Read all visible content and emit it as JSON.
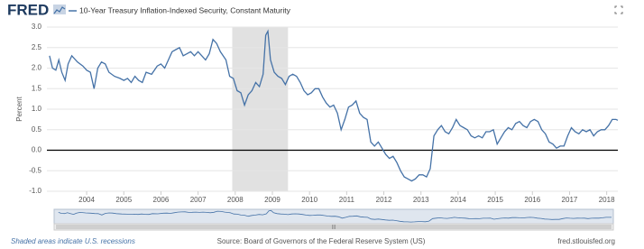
{
  "chart_data": {
    "type": "line",
    "brand": "FRED",
    "legend_text": "10-Year Treasury Inflation-Indexed Security, Constant Maturity",
    "ylabel": "Percent",
    "recession_note": "Shaded areas indicate U.S. recessions",
    "source": "Source: Board of Governors of the Federal Reserve System (US)",
    "site": "fred.stlouisfed.org",
    "xlim": [
      2002.93,
      2018.3
    ],
    "xticks": [
      2004,
      2005,
      2006,
      2007,
      2008,
      2009,
      2010,
      2011,
      2012,
      2013,
      2014,
      2015,
      2016,
      2017,
      2018
    ],
    "ylim": [
      -1,
      3
    ],
    "yticks": [
      {
        "value": 3,
        "label": "3.0"
      },
      {
        "value": 2.5,
        "label": "2.5"
      },
      {
        "value": 2,
        "label": "2.0"
      },
      {
        "value": 1.5,
        "label": "1.5"
      },
      {
        "value": 1,
        "label": "1.0"
      },
      {
        "value": 0.5,
        "label": "0.5"
      },
      {
        "value": 0,
        "label": "0.0"
      },
      {
        "value": -0.5,
        "label": "-0.5"
      },
      {
        "value": -1,
        "label": "-1.0"
      }
    ],
    "grid": true,
    "recessions": [
      [
        2007.92,
        2009.42
      ]
    ],
    "recession_color": "#e1e1e1",
    "series": [
      {
        "name": "10-Year Treasury Inflation-Indexed Security, Constant Maturity",
        "color": "#4572a7",
        "x": [
          2003.0,
          2003.08,
          2003.17,
          2003.25,
          2003.33,
          2003.42,
          2003.5,
          2003.6,
          2003.75,
          2003.9,
          2004.0,
          2004.1,
          2004.2,
          2004.3,
          2004.4,
          2004.5,
          2004.6,
          2004.75,
          2004.9,
          2005.0,
          2005.1,
          2005.2,
          2005.3,
          2005.4,
          2005.5,
          2005.6,
          2005.75,
          2005.9,
          2006.0,
          2006.1,
          2006.2,
          2006.3,
          2006.4,
          2006.5,
          2006.6,
          2006.7,
          2006.8,
          2006.9,
          2007.0,
          2007.1,
          2007.2,
          2007.3,
          2007.4,
          2007.5,
          2007.6,
          2007.75,
          2007.85,
          2007.95,
          2008.05,
          2008.15,
          2008.25,
          2008.35,
          2008.45,
          2008.55,
          2008.65,
          2008.75,
          2008.82,
          2008.88,
          2008.95,
          2009.05,
          2009.15,
          2009.25,
          2009.35,
          2009.45,
          2009.55,
          2009.65,
          2009.75,
          2009.85,
          2009.95,
          2010.05,
          2010.15,
          2010.25,
          2010.35,
          2010.45,
          2010.55,
          2010.65,
          2010.75,
          2010.85,
          2010.95,
          2011.05,
          2011.15,
          2011.25,
          2011.35,
          2011.45,
          2011.55,
          2011.65,
          2011.75,
          2011.85,
          2011.95,
          2012.05,
          2012.15,
          2012.25,
          2012.35,
          2012.45,
          2012.55,
          2012.65,
          2012.75,
          2012.85,
          2012.95,
          2013.05,
          2013.15,
          2013.25,
          2013.35,
          2013.45,
          2013.55,
          2013.65,
          2013.75,
          2013.85,
          2013.95,
          2014.05,
          2014.15,
          2014.25,
          2014.35,
          2014.45,
          2014.55,
          2014.65,
          2014.75,
          2014.85,
          2014.95,
          2015.05,
          2015.15,
          2015.25,
          2015.35,
          2015.45,
          2015.55,
          2015.65,
          2015.75,
          2015.85,
          2015.95,
          2016.05,
          2016.15,
          2016.25,
          2016.35,
          2016.45,
          2016.55,
          2016.65,
          2016.75,
          2016.85,
          2016.95,
          2017.05,
          2017.15,
          2017.25,
          2017.35,
          2017.45,
          2017.55,
          2017.65,
          2017.75,
          2017.85,
          2017.95,
          2018.05,
          2018.15,
          2018.25,
          2018.3
        ],
        "values": [
          2.3,
          2.0,
          1.95,
          2.2,
          1.9,
          1.7,
          2.1,
          2.3,
          2.15,
          2.05,
          1.95,
          1.9,
          1.5,
          2.0,
          2.15,
          2.1,
          1.9,
          1.8,
          1.75,
          1.7,
          1.75,
          1.65,
          1.8,
          1.7,
          1.65,
          1.9,
          1.85,
          2.05,
          2.1,
          2.0,
          2.2,
          2.4,
          2.45,
          2.5,
          2.3,
          2.35,
          2.4,
          2.3,
          2.4,
          2.3,
          2.2,
          2.35,
          2.7,
          2.6,
          2.4,
          2.2,
          1.8,
          1.75,
          1.45,
          1.4,
          1.1,
          1.35,
          1.45,
          1.65,
          1.55,
          1.85,
          2.8,
          2.9,
          2.2,
          1.9,
          1.8,
          1.75,
          1.6,
          1.8,
          1.85,
          1.8,
          1.65,
          1.45,
          1.35,
          1.4,
          1.5,
          1.5,
          1.3,
          1.15,
          1.05,
          1.1,
          0.9,
          0.5,
          0.75,
          1.05,
          1.1,
          1.2,
          0.9,
          0.8,
          0.75,
          0.2,
          0.1,
          0.2,
          0.05,
          -0.1,
          -0.2,
          -0.15,
          -0.3,
          -0.5,
          -0.65,
          -0.7,
          -0.75,
          -0.7,
          -0.6,
          -0.6,
          -0.65,
          -0.45,
          0.35,
          0.5,
          0.6,
          0.45,
          0.4,
          0.55,
          0.75,
          0.6,
          0.55,
          0.5,
          0.35,
          0.3,
          0.35,
          0.3,
          0.45,
          0.45,
          0.5,
          0.15,
          0.3,
          0.45,
          0.55,
          0.5,
          0.65,
          0.7,
          0.6,
          0.55,
          0.7,
          0.75,
          0.7,
          0.5,
          0.4,
          0.2,
          0.15,
          0.05,
          0.1,
          0.1,
          0.35,
          0.55,
          0.45,
          0.4,
          0.5,
          0.45,
          0.5,
          0.35,
          0.45,
          0.5,
          0.5,
          0.6,
          0.75,
          0.75,
          0.73
        ]
      }
    ]
  }
}
